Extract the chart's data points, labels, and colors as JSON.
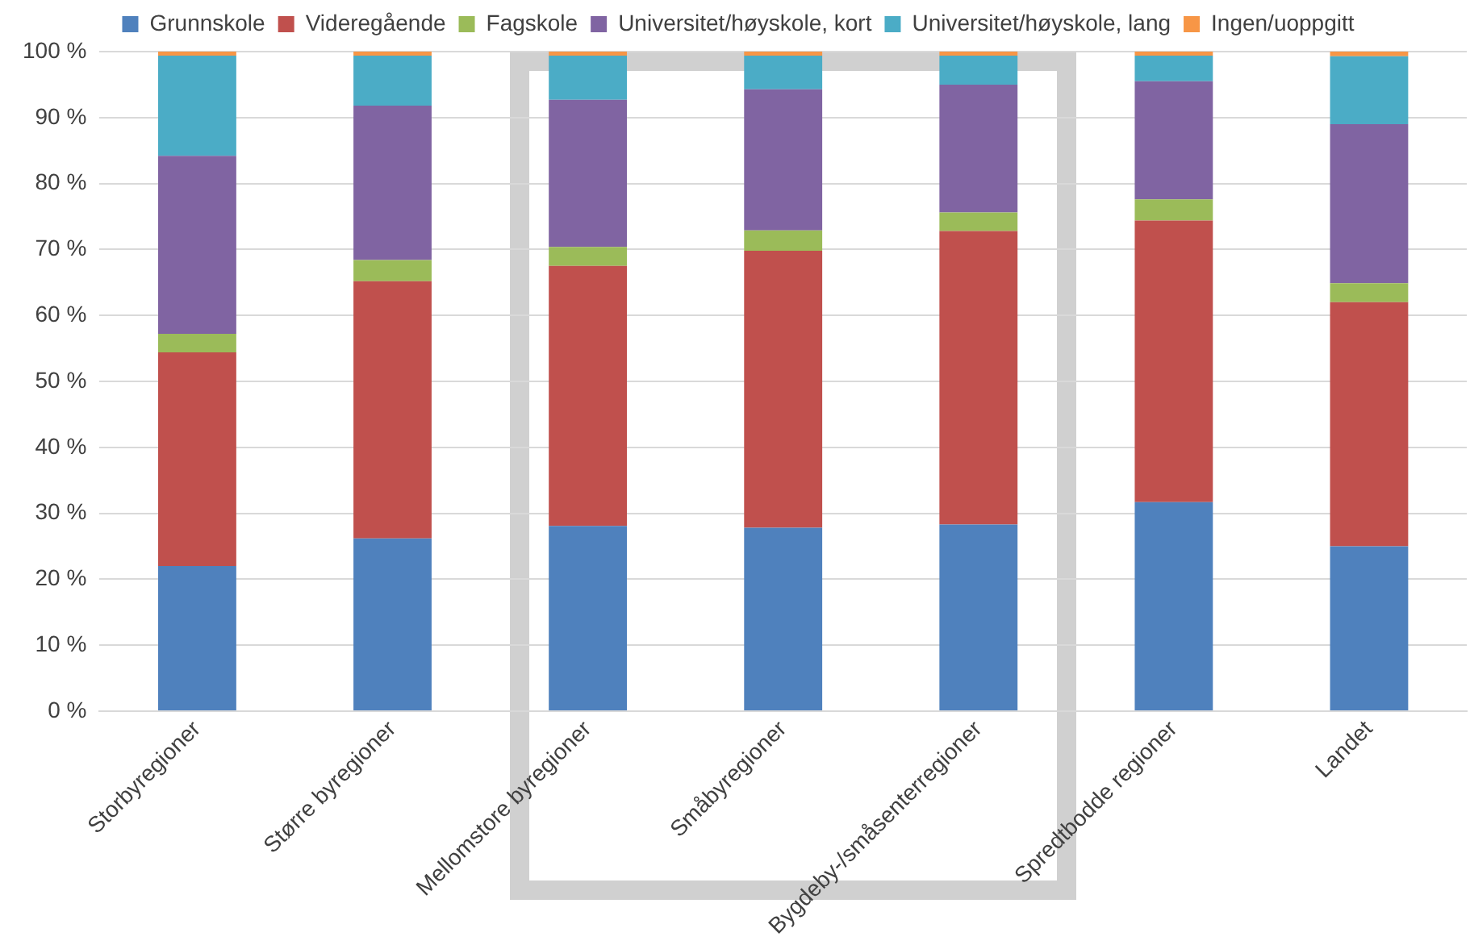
{
  "chart_data": {
    "type": "bar",
    "stacked": true,
    "categories": [
      "Storbyregioner",
      "Større byregioner",
      "Mellomstore byregioner",
      "Småbyregioner",
      "Bygdeby-/småsenterregioner",
      "Spredtbodde regioner",
      "Landet"
    ],
    "series": [
      {
        "name": "Grunnskole",
        "color": "#4f81bd",
        "values": [
          22.0,
          26.2,
          28.1,
          27.8,
          28.3,
          31.7,
          25.0
        ]
      },
      {
        "name": "Videregående",
        "color": "#c0504d",
        "values": [
          32.4,
          39.0,
          39.4,
          42.0,
          44.5,
          42.7,
          37.0
        ]
      },
      {
        "name": "Fagskole",
        "color": "#9bbb59",
        "values": [
          2.8,
          3.2,
          2.9,
          3.1,
          2.8,
          3.2,
          2.9
        ]
      },
      {
        "name": "Universitet/høyskole, kort",
        "color": "#8064a2",
        "values": [
          27.0,
          23.4,
          22.3,
          21.4,
          19.4,
          17.9,
          24.1
        ]
      },
      {
        "name": "Universitet/høyskole, lang",
        "color": "#4bacc6",
        "values": [
          15.2,
          7.6,
          6.7,
          5.1,
          4.4,
          3.9,
          10.3
        ]
      },
      {
        "name": "Ingen/uoppgitt",
        "color": "#f79646",
        "values": [
          0.6,
          0.6,
          0.6,
          0.6,
          0.6,
          0.6,
          0.7
        ]
      }
    ],
    "ylim": [
      0,
      100
    ],
    "yticks": [
      {
        "value": 0,
        "label": "0 %"
      },
      {
        "value": 10,
        "label": "10 %"
      },
      {
        "value": 20,
        "label": "20 %"
      },
      {
        "value": 30,
        "label": "30 %"
      },
      {
        "value": 40,
        "label": "40 %"
      },
      {
        "value": 50,
        "label": "50 %"
      },
      {
        "value": 60,
        "label": "60 %"
      },
      {
        "value": 70,
        "label": "70 %"
      },
      {
        "value": 80,
        "label": "80 %"
      },
      {
        "value": 90,
        "label": "90 %"
      },
      {
        "value": 100,
        "label": "100 %"
      }
    ],
    "grid": "y",
    "legend": "top"
  }
}
